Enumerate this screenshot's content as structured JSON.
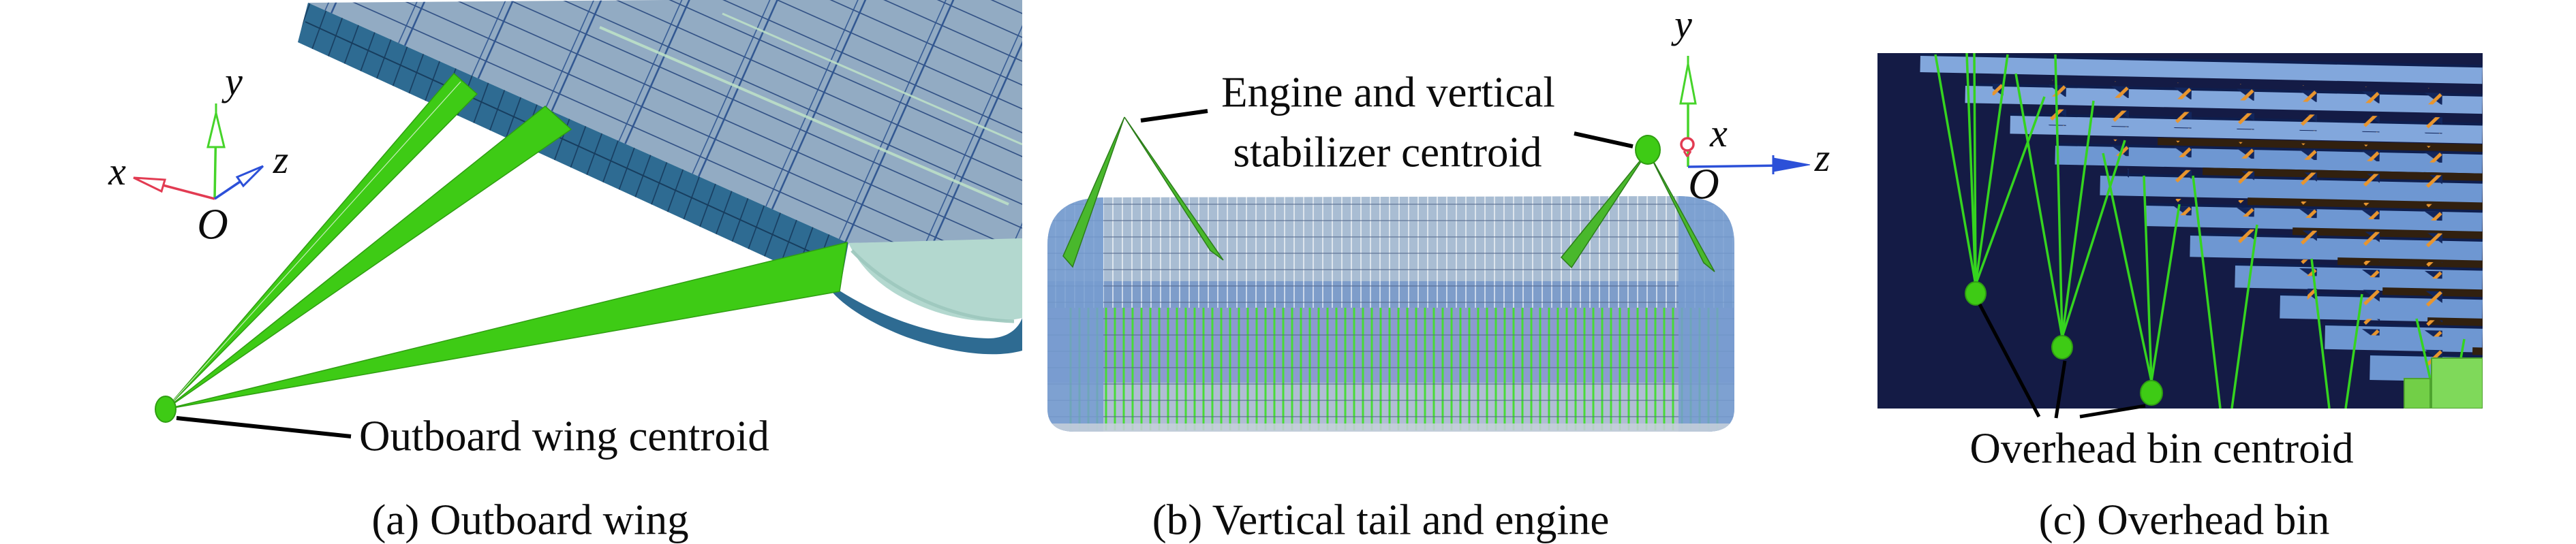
{
  "figure": {
    "panel_a": {
      "caption": "(a) Outboard wing",
      "centroid_label": "Outboard wing centroid"
    },
    "panel_b": {
      "caption": "(b) Vertical tail and engine",
      "centroid_label_line1": "Engine and vertical",
      "centroid_label_line2": "stabilizer centroid"
    },
    "panel_c": {
      "caption": "(c) Overhead bin",
      "centroid_label": "Overhead bin centroid"
    },
    "axis": {
      "x": "x",
      "y": "y",
      "z": "z",
      "origin": "O"
    },
    "colors": {
      "background": "#ffffff",
      "centroid_green": "#3ecb15",
      "spike_green": "#49b82c",
      "axis_x": "#e23b52",
      "axis_y": "#46d42a",
      "axis_z": "#2c50d8",
      "wing_surface": "#92abc3",
      "wing_edge": "#2e6b92",
      "wing_tip": "#b3d8cf",
      "fuselage": "#a9bdd3",
      "bin_background": "#141b45",
      "bin_slat": "#6e97d2",
      "bin_tick_orange": "#e8952e",
      "text": "#0c0c0c"
    }
  }
}
